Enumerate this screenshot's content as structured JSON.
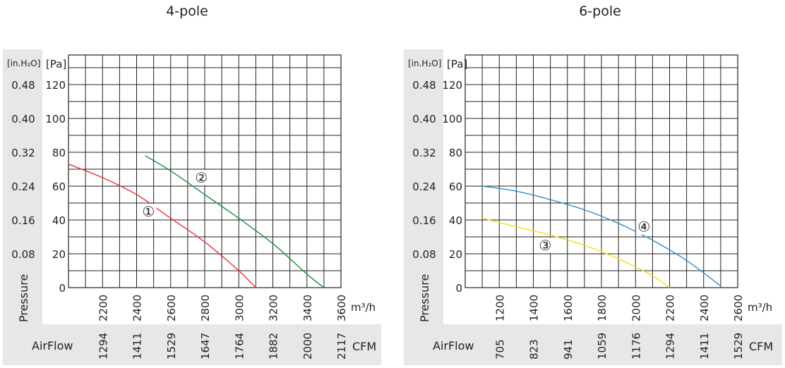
{
  "chart_data": [
    {
      "type": "line",
      "title": "4-pole",
      "left_unit": "[in.H₂O]",
      "ylabel": "[Pa]",
      "pressure_label": "Pressure",
      "airflow_label": "AirFlow",
      "x_unit": "m³/h",
      "cfm_unit": "CFM",
      "xlim": [
        2000,
        3600
      ],
      "ylim": [
        0,
        130
      ],
      "x_ticks": [
        "2200",
        "2400",
        "2600",
        "2800",
        "3000",
        "3200",
        "3400",
        "3600"
      ],
      "y_ticks": [
        "0",
        "20",
        "40",
        "60",
        "80",
        "100",
        "120"
      ],
      "inh2o_ticks": [
        "0.08",
        "0.16",
        "0.24",
        "0.32",
        "0.40",
        "0.48"
      ],
      "cfm_ticks": [
        "1294",
        "1411",
        "1529",
        "1647",
        "1764",
        "1882",
        "2000",
        "2117"
      ],
      "grid": true,
      "series": [
        {
          "name": "①",
          "color": "#e8323c",
          "label_at": [
            2470,
            45
          ],
          "x": [
            2000,
            2200,
            2400,
            2600,
            2800,
            3000,
            3100
          ],
          "y": [
            73,
            65,
            55,
            41,
            27,
            10,
            0
          ]
        },
        {
          "name": "②",
          "color": "#1e8e3e",
          "label_at": [
            2780,
            65
          ],
          "x": [
            2450,
            2600,
            2800,
            3000,
            3200,
            3400,
            3500
          ],
          "y": [
            78,
            69,
            55,
            41,
            26,
            8,
            0
          ]
        }
      ]
    },
    {
      "type": "line",
      "title": "6-pole",
      "left_unit": "[in.H₂O]",
      "ylabel": "[Pa]",
      "pressure_label": "Pressure",
      "airflow_label": "AirFlow",
      "x_unit": "m³/h",
      "cfm_unit": "CFM",
      "xlim": [
        1000,
        2600
      ],
      "ylim": [
        0,
        130
      ],
      "x_ticks": [
        "1200",
        "1400",
        "1600",
        "1800",
        "2000",
        "2200",
        "2400",
        "2600"
      ],
      "y_ticks": [
        "0",
        "20",
        "40",
        "60",
        "80",
        "100",
        "120"
      ],
      "inh2o_ticks": [
        "0.08",
        "0.16",
        "0.24",
        "0.32",
        "0.40",
        "0.48"
      ],
      "cfm_ticks": [
        "705",
        "823",
        "941",
        "1059",
        "1176",
        "1294",
        "1411",
        "1529"
      ],
      "grid": true,
      "series": [
        {
          "name": "③",
          "color": "#f2de1a",
          "label_at": [
            1470,
            25
          ],
          "x": [
            1100,
            1300,
            1500,
            1700,
            1900,
            2100,
            2200
          ],
          "y": [
            41,
            36,
            31,
            25,
            17,
            7,
            0
          ]
        },
        {
          "name": "④",
          "color": "#2e8fcf",
          "label_at": [
            2050,
            36
          ],
          "x": [
            1100,
            1300,
            1500,
            1700,
            1900,
            2100,
            2300,
            2500
          ],
          "y": [
            60,
            57,
            52,
            46,
            38,
            28,
            16,
            1
          ]
        }
      ]
    }
  ]
}
